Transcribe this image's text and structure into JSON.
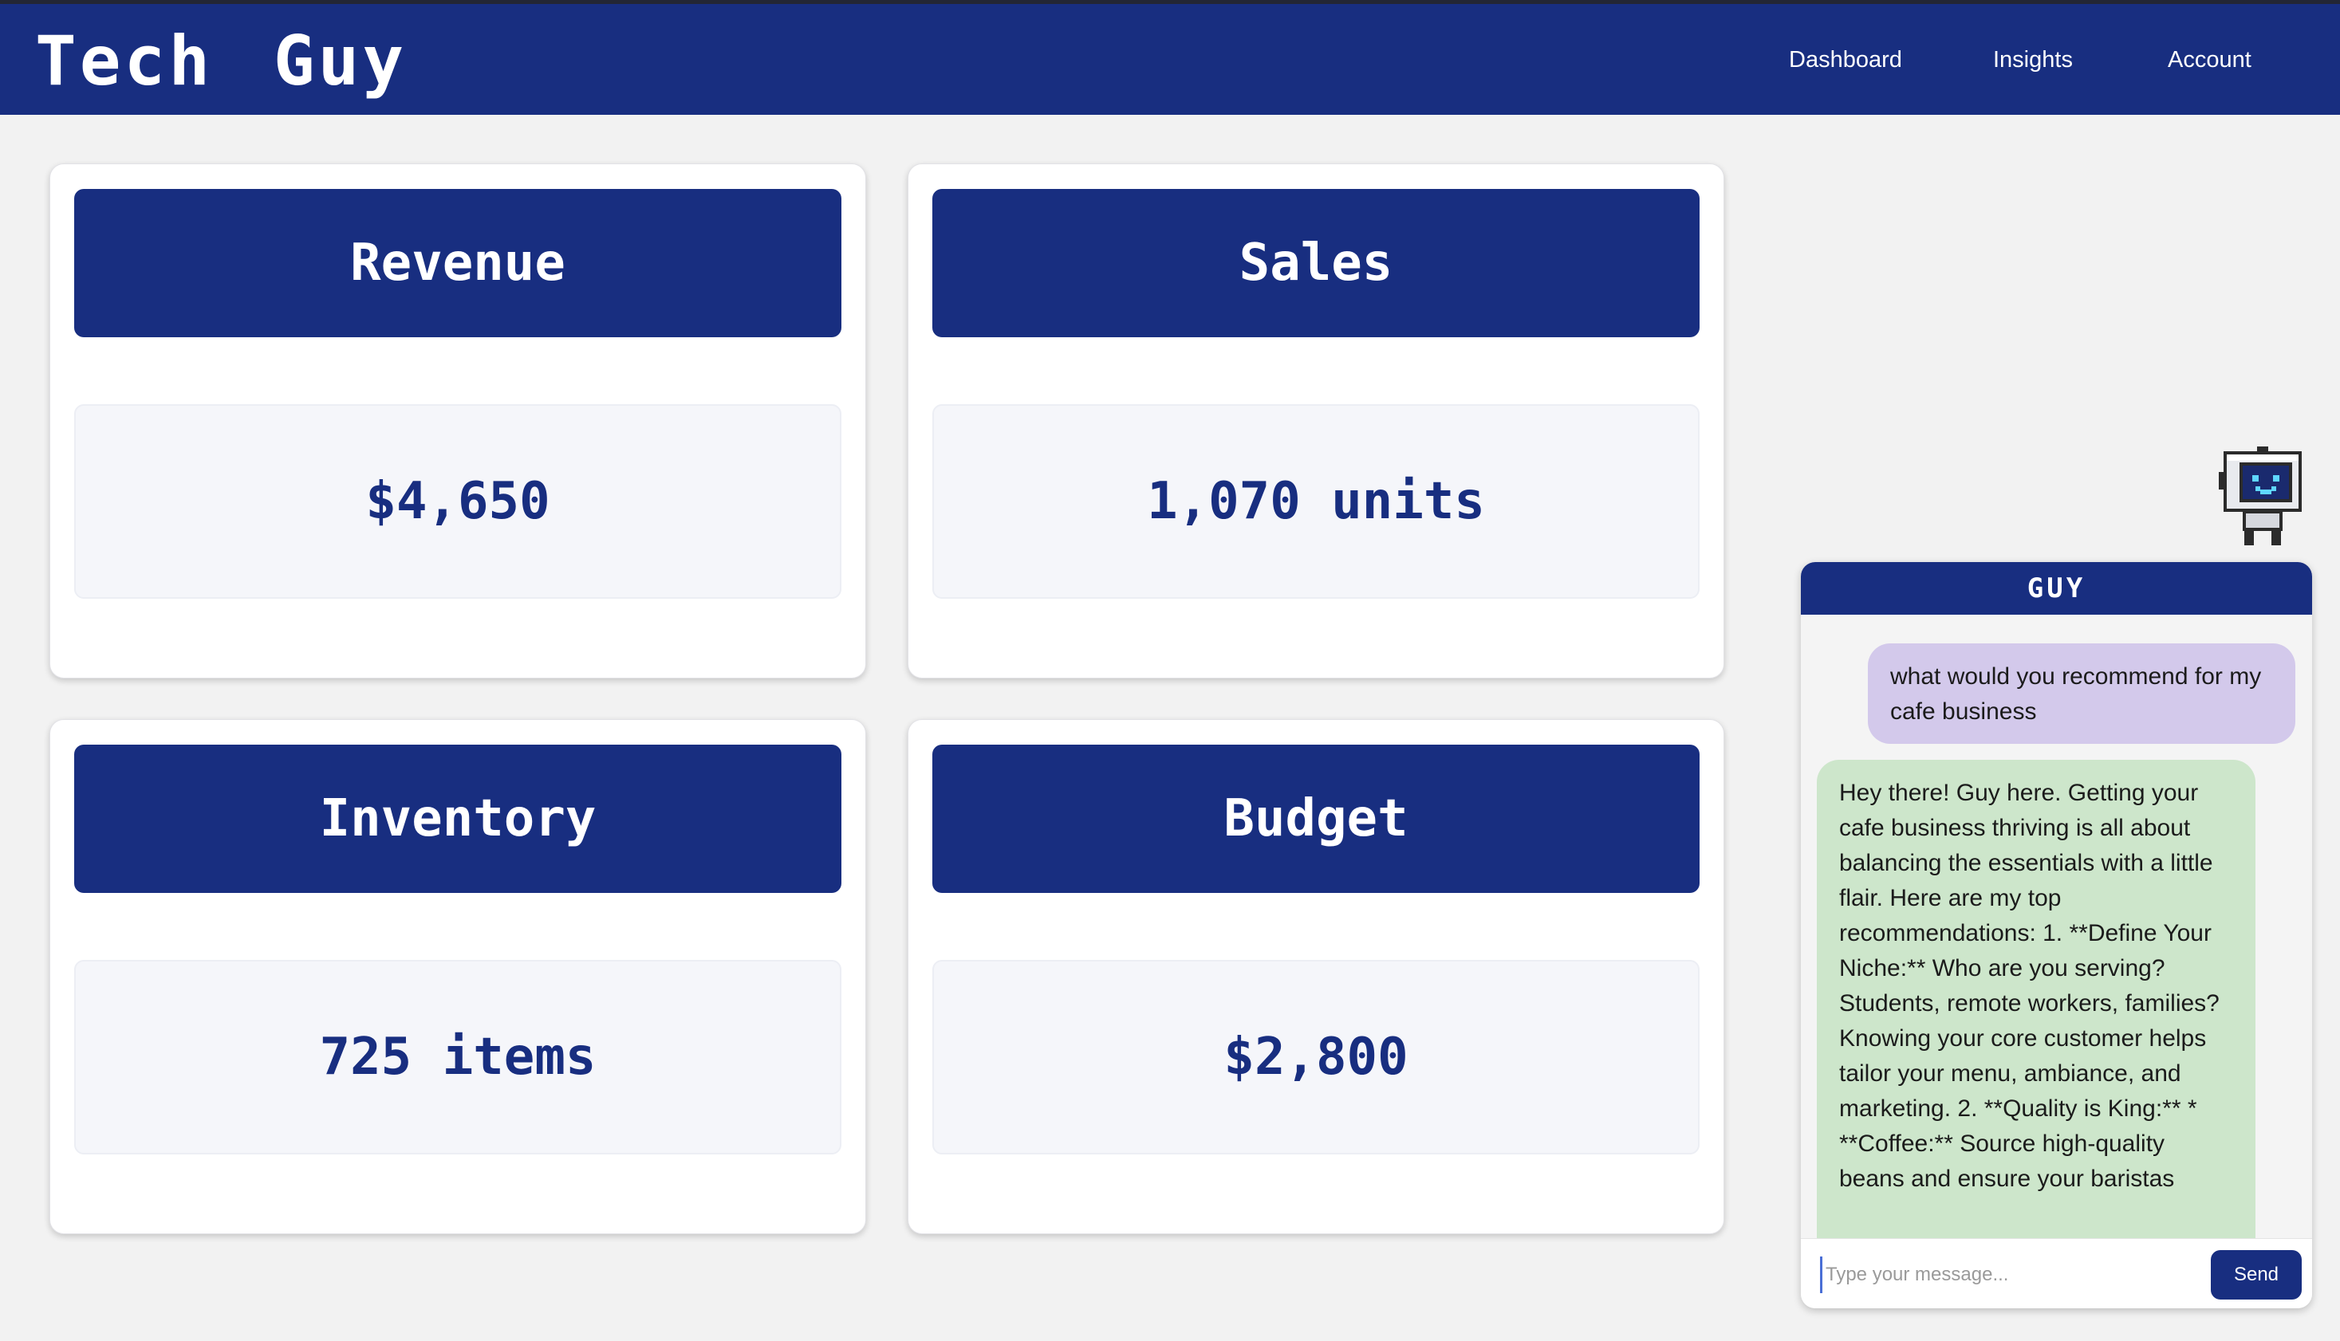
{
  "app": {
    "logo_text": "Tech Guy"
  },
  "nav": {
    "items": [
      {
        "label": "Dashboard"
      },
      {
        "label": "Insights"
      },
      {
        "label": "Account"
      }
    ]
  },
  "cards": [
    {
      "title": "Revenue",
      "value": "$4,650"
    },
    {
      "title": "Sales",
      "value": "1,070 units"
    },
    {
      "title": "Inventory",
      "value": "725 items"
    },
    {
      "title": "Budget",
      "value": "$2,800"
    }
  ],
  "chat": {
    "title": "GUY",
    "user_message": "what would you recommend for my cafe business",
    "bot_message": "Hey there! Guy here. Getting your cafe business thriving is all about balancing the essentials with a little flair. Here are my top recommendations: 1. **Define Your Niche:** Who are you serving? Students, remote workers, families? Knowing your core customer helps tailor your menu, ambiance, and marketing. 2. **Quality is King:** * **Coffee:** Source high-quality beans and ensure your baristas",
    "input_placeholder": "Type your message...",
    "send_label": "Send"
  },
  "colors": {
    "primary": "#182e80",
    "user_bubble": "#d3c9eb",
    "bot_bubble": "#cde6cb",
    "page_background": "#f2f2f2"
  },
  "icons": {
    "assistant_avatar": "robot-icon"
  }
}
